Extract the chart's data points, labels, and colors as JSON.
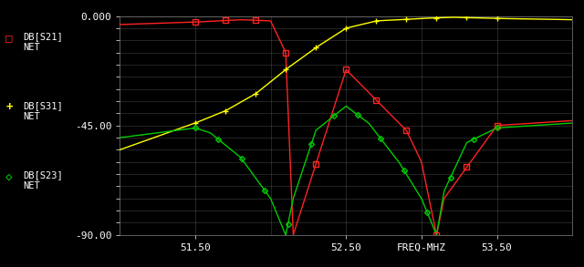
{
  "background_color": "#000000",
  "plot_bg_color": "#000000",
  "grid_color": "#808080",
  "freq_min": 51.0,
  "freq_max": 54.0,
  "ymin": -90.0,
  "ymax": 0.0,
  "yticks": [
    0.0,
    -45.0,
    -90.0
  ],
  "ytick_labels": [
    "0.000",
    "-45.00",
    "-90.00"
  ],
  "xtick_positions": [
    51.5,
    52.5,
    53.0,
    53.5
  ],
  "xtick_labels": [
    "51.50",
    "52.50",
    "FREQ-MHZ",
    "53.50"
  ],
  "vgrid_x": [
    51.5,
    52.0,
    52.5,
    53.0,
    53.5
  ],
  "S21_color": "#ff2222",
  "S31_color": "#ffff00",
  "S23_color": "#00cc00",
  "S21_label": "DB[S21]\nNET",
  "S31_label": "DB[S31]\nNET",
  "S23_label": "DB[S23]\nNET",
  "S21_pts_x": [
    51.0,
    51.5,
    51.8,
    52.0,
    52.1,
    52.15,
    52.5,
    52.9,
    53.0,
    53.1,
    53.15,
    53.5,
    54.0
  ],
  "S21_pts_y": [
    -3.5,
    -2.5,
    -1.5,
    -2.0,
    -15.0,
    -90.0,
    -22.0,
    -47.0,
    -60.0,
    -90.0,
    -75.0,
    -45.0,
    -43.0
  ],
  "S31_pts_x": [
    51.0,
    51.5,
    51.7,
    51.9,
    52.1,
    52.3,
    52.5,
    52.7,
    53.0,
    53.2,
    53.5,
    54.0
  ],
  "S31_pts_y": [
    -55.0,
    -44.0,
    -39.0,
    -32.0,
    -22.0,
    -13.0,
    -5.0,
    -2.0,
    -1.0,
    -0.5,
    -1.0,
    -1.5
  ],
  "S23_pts_x": [
    51.0,
    51.5,
    51.6,
    51.8,
    52.0,
    52.1,
    52.15,
    52.3,
    52.5,
    52.65,
    52.85,
    53.0,
    53.1,
    53.15,
    53.3,
    53.5,
    54.0
  ],
  "S23_pts_y": [
    -50.0,
    -46.0,
    -48.0,
    -58.0,
    -75.0,
    -90.0,
    -75.0,
    -47.0,
    -37.0,
    -44.0,
    -60.0,
    -75.0,
    -90.0,
    -72.0,
    -52.0,
    -46.0,
    -44.0
  ],
  "marker_n": 11,
  "marker_freq_start": 51.5,
  "marker_freq_end": 53.5
}
